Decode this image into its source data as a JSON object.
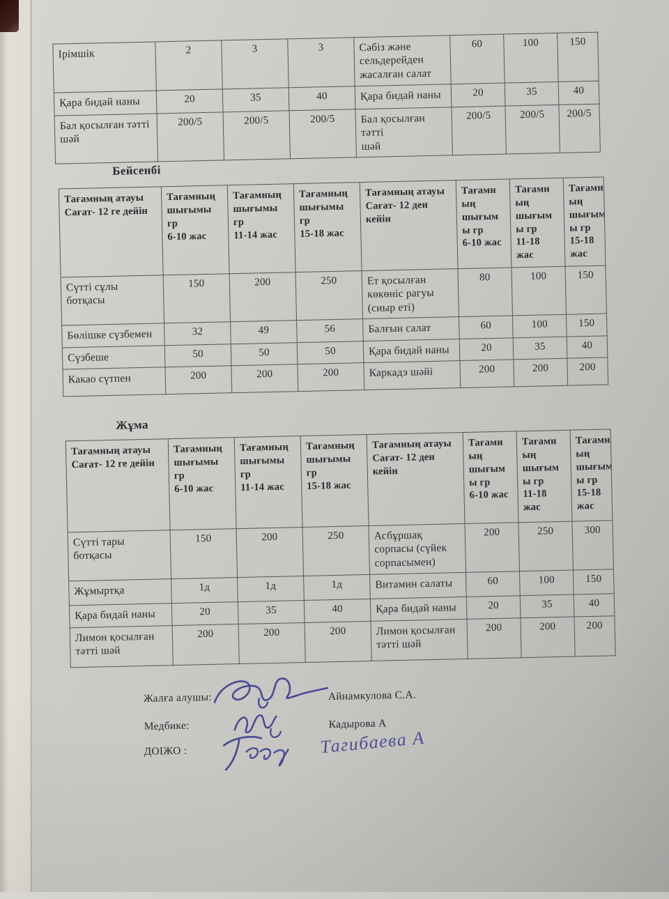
{
  "document": {
    "continuation_table": {
      "rows": [
        [
          "Ірімшік",
          "2",
          "3",
          "3",
          "Сәбіз және\nсельдерейден\nжасалған салат",
          "60",
          "100",
          "150"
        ],
        [
          "Қара бидай наны",
          "20",
          "35",
          "40",
          "Қара бидай наны",
          "20",
          "35",
          "40"
        ],
        [
          "Бал қосылған тәтті\nшәй",
          "200/5",
          "200/5",
          "200/5",
          "Бал қосылған тәтті\nшәй",
          "200/5",
          "200/5",
          "200/5"
        ]
      ]
    },
    "day_sections": [
      {
        "title": "Бейсенбі",
        "header": [
          "Тағамның атауы\nСағат- 12 ге дейін",
          "Тағамның\nшығымы\nгр\n6-10 жас",
          "Тағамның\nшығымы\nгр\n11-14 жас",
          "Тағамның\nшығымы\nгр\n15-18 жас",
          "Тағамның атауы\nСағат- 12 ден\nкейін",
          "Тағамн\nың\nшығым\nы гр\n6-10 жас",
          "Тағамн\nың\nшығым\nы гр\n11-18\nжас",
          "Тағамн\nың\nшығым\nы гр\n15-18\nжас"
        ],
        "rows": [
          [
            "Сүтті сұлы ботқасы",
            "150",
            "200",
            "250",
            "Ет қосылған\nкөкөніс рагуы\n(сиыр еті)",
            "80",
            "100",
            "150"
          ],
          [
            "Бөлішке сүзбемен",
            "32",
            "49",
            "56",
            "Балғын салат",
            "60",
            "100",
            "150"
          ],
          [
            "Сүзбеше",
            "50",
            "50",
            "50",
            "Қара бидай наны",
            "20",
            "35",
            "40"
          ],
          [
            "Какао сүтпен",
            "200",
            "200",
            "200",
            "Каркадэ шәйі",
            "200",
            "200",
            "200"
          ]
        ]
      },
      {
        "title": "Жұма",
        "header": [
          "Тағамның атауы\nСағат- 12 ге дейін",
          "Тағамның\nшығымы\nгр\n6-10 жас",
          "Тағамның\nшығымы\nгр\n11-14 жас",
          "Тағамның\nшығымы\nгр\n15-18 жас",
          "Тағамның атауы\nСағат- 12 ден\nкейін",
          "Тағамн\nың\nшығым\nы гр\n6-10 жас",
          "Тағамн\nың\nшығым\nы гр\n11-18\nжас",
          "Тағамн\nың\nшығым\nы гр\n15-18\nжас"
        ],
        "rows": [
          [
            "Сүтті тары ботқасы",
            "150",
            "200",
            "250",
            "Асбұршақ\nсорпасы (сүйек\nсорпасымен)",
            "200",
            "250",
            "300"
          ],
          [
            "Жұмыртқа",
            "1д",
            "1д",
            "1д",
            "Витамин салаты",
            "60",
            "100",
            "150"
          ],
          [
            "Қара бидай наны",
            "20",
            "35",
            "40",
            "Қара бидай наны",
            "20",
            "35",
            "40"
          ],
          [
            "Лимон қосылған\nтәтті шәй",
            "200",
            "200",
            "200",
            "Лимон қосылған\nтәтті шәй",
            "200",
            "200",
            "200"
          ]
        ]
      }
    ],
    "signatures": [
      {
        "label": "Жалға алушы:",
        "name": "Айнамкулова С.А."
      },
      {
        "label": "Медбике:",
        "name": "Кадырова А"
      },
      {
        "label": "ДОІЖО :",
        "name": "Тагибаева А"
      }
    ],
    "colors": {
      "paper": "#c9c8c3",
      "ink": "#2b2b30",
      "signature_ink": "#3d4090",
      "table_border": "#56545c"
    }
  }
}
